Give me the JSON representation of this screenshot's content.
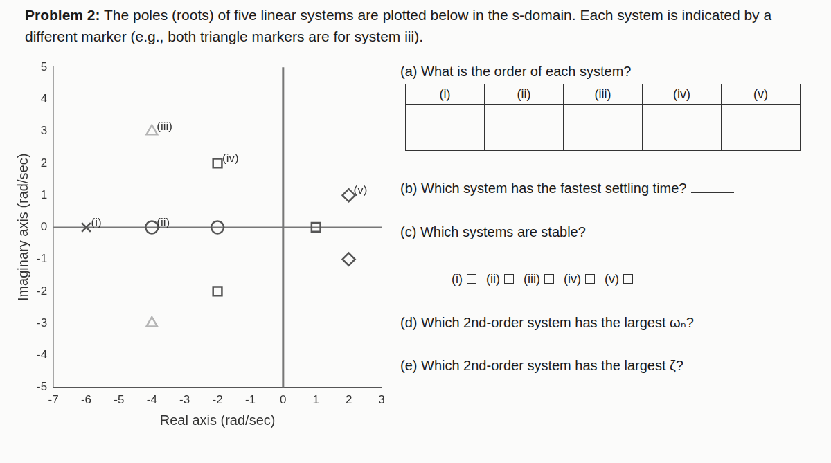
{
  "header": {
    "label": "Problem 2:",
    "text": "The poles (roots) of five linear systems are plotted below in the s-domain. Each system is indicated by a different marker (e.g., both triangle markers are for system iii)."
  },
  "chart_data": {
    "type": "scatter",
    "x_label": "Real axis (rad/sec)",
    "y_label": "Imaginary axis (rad/sec)",
    "xlim": [
      -7,
      3
    ],
    "xticks": [
      -7,
      -6,
      -5,
      -4,
      -3,
      -2,
      -1,
      0,
      1,
      2,
      3
    ],
    "ylim": [
      -5,
      5
    ],
    "yticks": [
      -5,
      -4,
      -3,
      -2,
      -1,
      0,
      1,
      2,
      3,
      4,
      5
    ],
    "grid": false,
    "series": [
      {
        "name": "(i)",
        "color": "#555555",
        "marker": "x",
        "x": [
          -6
        ],
        "values": [
          0
        ]
      },
      {
        "name": "(ii)",
        "color": "#555555",
        "marker": "circle",
        "x": [
          -4,
          -2
        ],
        "values": [
          0,
          0
        ]
      },
      {
        "name": "(iii)",
        "color": "#b5b5b5",
        "marker": "triangle",
        "x": [
          -4,
          -4
        ],
        "values": [
          3,
          -3
        ]
      },
      {
        "name": "(iv)",
        "color": "#555555",
        "marker": "square",
        "x": [
          -2,
          -2,
          1
        ],
        "values": [
          2,
          -2,
          0
        ]
      },
      {
        "name": "(v)",
        "color": "#555555",
        "marker": "diamond",
        "x": [
          2,
          2
        ],
        "values": [
          1,
          -1
        ]
      }
    ]
  },
  "questions": [
    {
      "label": "(a)",
      "text": "What is the order of each system?",
      "table_headers": [
        "(i)",
        "(ii)",
        "(iii)",
        "(iv)",
        "(v)"
      ]
    },
    {
      "label": "(b)",
      "text": "Which system has the fastest settling time?"
    },
    {
      "label": "(c)",
      "text": "Which systems are stable?",
      "options": [
        "(i)",
        "(ii)",
        "(iii)",
        "(iv)",
        "(v)"
      ]
    },
    {
      "label": "(d)",
      "text": "Which 2nd-order system has the largest ωₙ?"
    },
    {
      "label": "(e)",
      "text": "Which 2nd-order system has the largest ζ?"
    }
  ]
}
